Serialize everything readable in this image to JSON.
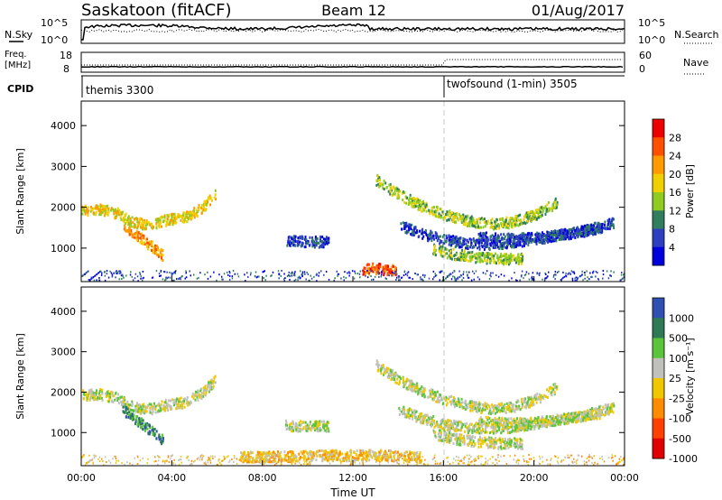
{
  "header": {
    "station": "Saskatoon (fitACF)",
    "beam": "Beam 12",
    "date": "01/Aug/2017"
  },
  "noise_panel": {
    "left_label": "N.Sky",
    "left_ticks": [
      "10^5",
      "10^0"
    ],
    "right_ticks": [
      "10^5",
      "10^0"
    ],
    "right_label": "N.Search",
    "left_series": "N.Sky",
    "right_series": "N.Search"
  },
  "freq_panel": {
    "left_label_1": "Freq.",
    "left_label_2": "[MHz]",
    "left_ticks": [
      "18",
      "8"
    ],
    "right_ticks": [
      "60",
      "0"
    ],
    "right_label": "Nave"
  },
  "cpid_panel": {
    "label": "CPID",
    "modes": [
      {
        "name": "themis 3300",
        "start_hour": 0
      },
      {
        "name": "twofsound (1-min) 3505",
        "start_hour": 16
      }
    ]
  },
  "colors": {
    "power": [
      "#0000dd",
      "#2d3fc0",
      "#2f7f5f",
      "#90cc20",
      "#f0d000",
      "#ff9a00",
      "#ff5000",
      "#ee0000"
    ],
    "velocity": [
      "#2f50b0",
      "#2d7a55",
      "#5ac43a",
      "#c0c0bc",
      "#f0c800",
      "#ff8c00",
      "#ff4000",
      "#e00000"
    ],
    "text": "#000000",
    "dashed_marker": "#c8c8c8"
  },
  "chart_data": [
    {
      "type": "heatmap",
      "parameter": "Power",
      "ylabel": "Slant Range [km]",
      "xlabel": "",
      "x_range_hours": [
        0,
        24
      ],
      "ylim": [
        180,
        4600
      ],
      "yticks": [
        1000,
        2000,
        3000,
        4000
      ],
      "colorbar_label": "Power [dB]",
      "colorbar_ticks": [
        "4",
        "8",
        "12",
        "16",
        "20",
        "24",
        "28"
      ],
      "features": [
        {
          "name": "morning band",
          "t": [
            0.0,
            0.8,
            1.6,
            2.3,
            3.0,
            3.8,
            4.6,
            5.3,
            5.9
          ],
          "range_km": [
            1950,
            1980,
            1870,
            1640,
            1610,
            1720,
            1780,
            2000,
            2320
          ],
          "level": 4
        },
        {
          "name": "dropping patch",
          "t": [
            1.8,
            2.4,
            3.0,
            3.4,
            3.6
          ],
          "range_km": [
            1600,
            1350,
            1100,
            930,
            830
          ],
          "level": 5
        },
        {
          "name": "mid-day patch",
          "t": [
            9.0,
            9.7,
            10.4,
            10.9
          ],
          "range_km": [
            1200,
            1190,
            1180,
            1190
          ],
          "level": 1
        },
        {
          "name": "near-range echo",
          "t": [
            12.4,
            12.9,
            13.4,
            13.9
          ],
          "range_km": [
            500,
            530,
            500,
            480
          ],
          "level": 6
        },
        {
          "name": "evening arc upper",
          "t": [
            13.0,
            14.0,
            15.0,
            16.0,
            17.0,
            18.0,
            19.0,
            20.0,
            21.0
          ],
          "range_km": [
            2700,
            2340,
            2060,
            1850,
            1700,
            1610,
            1660,
            1830,
            2150
          ],
          "level": 3
        },
        {
          "name": "evening arc middle",
          "t": [
            14.0,
            15.0,
            16.0,
            17.0,
            18.0,
            19.0,
            20.0,
            21.5,
            23.0
          ],
          "range_km": [
            1600,
            1380,
            1230,
            1150,
            1120,
            1160,
            1250,
            1380,
            1520
          ],
          "level": 1
        },
        {
          "name": "evening arc lower",
          "t": [
            15.5,
            16.5,
            17.5,
            18.5,
            19.5
          ],
          "range_km": [
            1000,
            870,
            800,
            760,
            760
          ],
          "level": 3
        },
        {
          "name": "late arc",
          "t": [
            17.5,
            19.0,
            20.5,
            22.0,
            23.5
          ],
          "range_km": [
            1300,
            1250,
            1300,
            1420,
            1650
          ],
          "level": 1
        }
      ]
    },
    {
      "type": "heatmap",
      "parameter": "Velocity",
      "ylabel": "Slant Range [km]",
      "xlabel": "Time UT",
      "x_range_hours": [
        0,
        24
      ],
      "xticks": [
        "00:00",
        "04:00",
        "08:00",
        "12:00",
        "16:00",
        "20:00",
        "00:00"
      ],
      "ylim": [
        180,
        4600
      ],
      "yticks": [
        1000,
        2000,
        3000,
        4000
      ],
      "colorbar_label": "Velocity [m s⁻¹]",
      "colorbar_ticks": [
        "1000",
        "500",
        "100",
        "25",
        "-25",
        "-100",
        "-500",
        "-1000"
      ],
      "features": [
        {
          "name": "morning band",
          "t": [
            0.0,
            0.8,
            1.6,
            2.3,
            3.0,
            3.8,
            4.6,
            5.3,
            5.9
          ],
          "range_km": [
            1950,
            1980,
            1870,
            1640,
            1610,
            1720,
            1780,
            2000,
            2320
          ],
          "level": 3
        },
        {
          "name": "dropping patch",
          "t": [
            1.8,
            2.4,
            3.0,
            3.4,
            3.6
          ],
          "range_km": [
            1600,
            1350,
            1100,
            930,
            830
          ],
          "level": 1
        },
        {
          "name": "mid-day patch",
          "t": [
            9.0,
            9.7,
            10.4,
            10.9
          ],
          "range_km": [
            1200,
            1190,
            1180,
            1190
          ],
          "level": 3
        },
        {
          "name": "near-range echo",
          "t": [
            7.0,
            9.0,
            11.0,
            13.0,
            15.0
          ],
          "range_km": [
            420,
            440,
            460,
            470,
            420
          ],
          "level": 4
        },
        {
          "name": "evening arc upper",
          "t": [
            13.0,
            14.0,
            15.0,
            16.0,
            17.0,
            18.0,
            19.0,
            20.0,
            21.0
          ],
          "range_km": [
            2700,
            2340,
            2060,
            1850,
            1700,
            1610,
            1660,
            1830,
            2150
          ],
          "level": 3
        },
        {
          "name": "evening arc middle",
          "t": [
            14.0,
            15.0,
            16.0,
            17.0,
            18.0,
            19.0,
            20.0,
            21.5,
            23.0
          ],
          "range_km": [
            1600,
            1380,
            1230,
            1150,
            1120,
            1160,
            1250,
            1380,
            1520
          ],
          "level": 3
        },
        {
          "name": "evening arc lower",
          "t": [
            15.5,
            16.5,
            17.5,
            18.5,
            19.5
          ],
          "range_km": [
            1000,
            870,
            800,
            760,
            760
          ],
          "level": 3
        },
        {
          "name": "late arc",
          "t": [
            17.5,
            19.0,
            20.5,
            22.0,
            23.5
          ],
          "range_km": [
            1300,
            1250,
            1300,
            1420,
            1650
          ],
          "level": 3
        }
      ]
    }
  ]
}
